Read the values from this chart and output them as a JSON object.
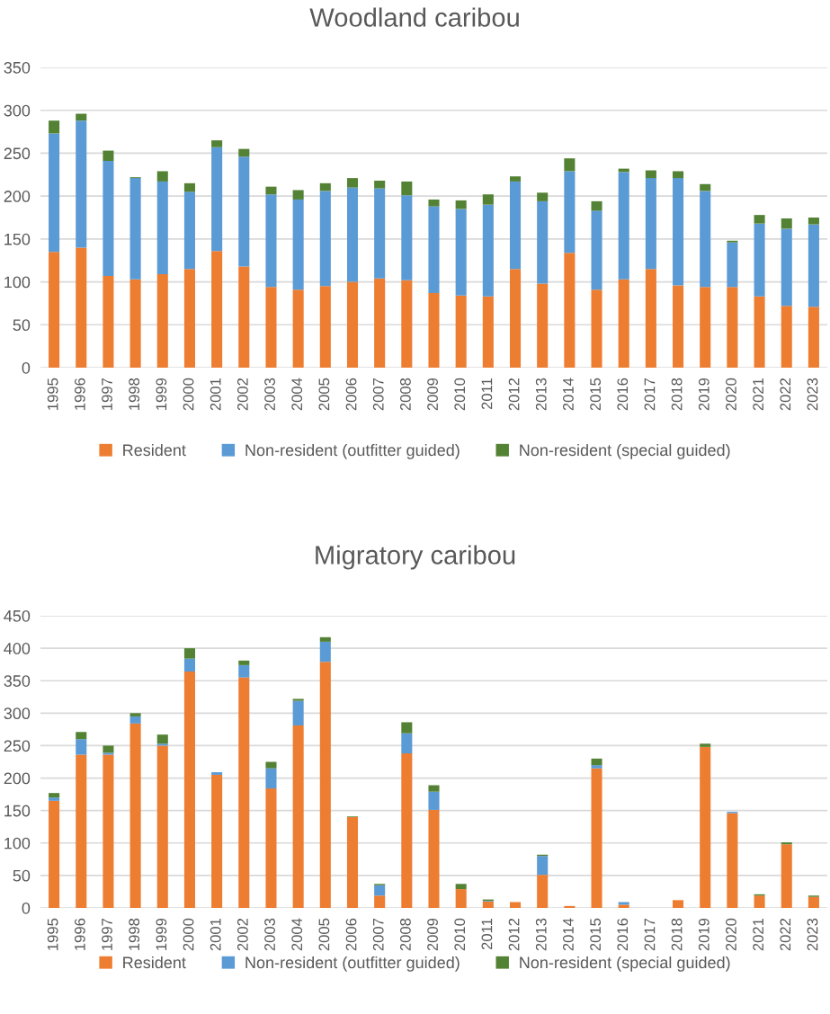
{
  "chart_data": [
    {
      "type": "bar",
      "title": "Woodland caribou",
      "stacked": true,
      "grid": "y",
      "legend": "bottom",
      "categories": [
        "1995",
        "1996",
        "1997",
        "1998",
        "1999",
        "2000",
        "2001",
        "2002",
        "2003",
        "2004",
        "2005",
        "2006",
        "2007",
        "2008",
        "2009",
        "2010",
        "2011",
        "2012",
        "2013",
        "2014",
        "2015",
        "2016",
        "2017",
        "2018",
        "2019",
        "2020",
        "2021",
        "2022",
        "2023"
      ],
      "ylim": [
        0,
        350
      ],
      "yticks": [
        0,
        50,
        100,
        150,
        200,
        250,
        300,
        350
      ],
      "series": [
        {
          "name": "Resident",
          "color": "#ed7d31",
          "values": [
            135,
            140,
            107,
            103,
            109,
            115,
            136,
            118,
            94,
            91,
            95,
            100,
            104,
            102,
            87,
            84,
            83,
            115,
            98,
            134,
            91,
            103,
            115,
            96,
            94,
            94,
            83,
            72,
            71
          ]
        },
        {
          "name": "Non-resident (outfitter guided)",
          "color": "#5b9bd5",
          "values": [
            138,
            148,
            134,
            118,
            108,
            90,
            121,
            128,
            108,
            105,
            111,
            110,
            105,
            99,
            101,
            101,
            107,
            102,
            96,
            95,
            92,
            125,
            106,
            125,
            112,
            52,
            85,
            90,
            96
          ]
        },
        {
          "name": "Non-resident (special guided)",
          "color": "#548235",
          "values": [
            15,
            8,
            12,
            1,
            12,
            10,
            8,
            9,
            9,
            11,
            9,
            11,
            9,
            16,
            8,
            10,
            12,
            6,
            10,
            15,
            11,
            4,
            9,
            8,
            8,
            2,
            10,
            12,
            8
          ]
        }
      ]
    },
    {
      "type": "bar",
      "title": "Migratory caribou",
      "stacked": true,
      "grid": "y",
      "legend": "bottom",
      "categories": [
        "1995",
        "1996",
        "1997",
        "1998",
        "1999",
        "2000",
        "2001",
        "2002",
        "2003",
        "2004",
        "2005",
        "2006",
        "2007",
        "2008",
        "2009",
        "2010",
        "2011",
        "2012",
        "2013",
        "2014",
        "2015",
        "2016",
        "2017",
        "2018",
        "2019",
        "2020",
        "2021",
        "2022",
        "2023"
      ],
      "ylim": [
        0,
        450
      ],
      "yticks": [
        0,
        50,
        100,
        150,
        200,
        250,
        300,
        350,
        400,
        450
      ],
      "series": [
        {
          "name": "Resident",
          "color": "#ed7d31",
          "values": [
            165,
            236,
            236,
            284,
            250,
            364,
            205,
            355,
            184,
            281,
            379,
            140,
            19,
            238,
            151,
            29,
            10,
            9,
            51,
            3,
            215,
            5,
            0,
            12,
            248,
            146,
            19,
            98,
            17
          ]
        },
        {
          "name": "Non-resident (outfitter guided)",
          "color": "#5b9bd5",
          "values": [
            5,
            24,
            3,
            11,
            3,
            20,
            4,
            19,
            31,
            38,
            31,
            0,
            16,
            31,
            28,
            0,
            1,
            0,
            29,
            0,
            5,
            4,
            0,
            0,
            0,
            2,
            0,
            0,
            0
          ]
        },
        {
          "name": "Non-resident (special guided)",
          "color": "#548235",
          "values": [
            7,
            11,
            11,
            5,
            14,
            16,
            0,
            7,
            10,
            3,
            7,
            1,
            2,
            17,
            10,
            8,
            2,
            0,
            2,
            0,
            10,
            0,
            0,
            0,
            5,
            0,
            2,
            3,
            2
          ]
        }
      ]
    }
  ]
}
